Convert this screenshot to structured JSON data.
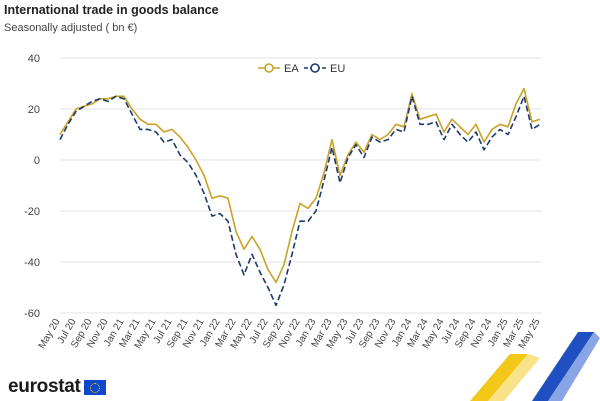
{
  "header": {
    "title": "International trade in goods balance",
    "subtitle": "Seasonally adjusted ( bn €)"
  },
  "brand": {
    "logo_text": "eurostat",
    "logo_icon": "eu-flag-icon"
  },
  "colors": {
    "ea": "#c9a227",
    "eu": "#1c3a6e",
    "grid": "#e3e3e3",
    "accent_yellow": "#f2c200",
    "accent_blue": "#1f4fc1"
  },
  "chart_data": {
    "type": "line",
    "title": "International trade in goods balance",
    "subtitle": "Seasonally adjusted ( bn €)",
    "xlabel": "",
    "ylabel": "",
    "ylim": [
      -60,
      40
    ],
    "yticks": [
      40,
      20,
      0,
      -20,
      -40,
      -60
    ],
    "grid": true,
    "legend_position": "top-center",
    "categories": [
      "May 20",
      "Jun 20",
      "Jul 20",
      "Aug 20",
      "Sep 20",
      "Oct 20",
      "Nov 20",
      "Dec 20",
      "Jan 21",
      "Feb 21",
      "Mar 21",
      "Apr 21",
      "May 21",
      "Jun 21",
      "Jul 21",
      "Aug 21",
      "Sep 21",
      "Oct 21",
      "Nov 21",
      "Dec 21",
      "Jan 22",
      "Feb 22",
      "Mar 22",
      "Apr 22",
      "May 22",
      "Jun 22",
      "Jul 22",
      "Aug 22",
      "Sep 22",
      "Oct 22",
      "Nov 22",
      "Dec 22",
      "Jan 23",
      "Feb 23",
      "Mar 23",
      "Apr 23",
      "May 23",
      "Jun 23",
      "Jul 23",
      "Aug 23",
      "Sep 23",
      "Oct 23",
      "Nov 23",
      "Dec 23",
      "Jan 24",
      "Feb 24",
      "Mar 24",
      "Apr 24",
      "May 24",
      "Jun 24",
      "Jul 24",
      "Aug 24",
      "Sep 24",
      "Oct 24",
      "Nov 24",
      "Dec 24",
      "Jan 25",
      "Feb 25",
      "Mar 25",
      "Apr 25",
      "May 25"
    ],
    "tick_labels": [
      "May 20",
      "Jul 20",
      "Sep 20",
      "Nov 20",
      "Jan 21",
      "Mar 21",
      "May 21",
      "Jul 21",
      "Sep 21",
      "Nov 21",
      "Jan 22",
      "Mar 22",
      "May 22",
      "Jul 22",
      "Sep 22",
      "Nov 22",
      "Jan 23",
      "Mar 23",
      "May 23",
      "Jul 23",
      "Sep 23",
      "Nov 23",
      "Jan 24",
      "Mar 24",
      "May 24",
      "Jul 24",
      "Sep 24",
      "Nov 24",
      "Jan 25",
      "Mar 25",
      "May 25"
    ],
    "series": [
      {
        "name": "EA",
        "style": "solid",
        "values": [
          10,
          15,
          20,
          21,
          22,
          24,
          24,
          25,
          25,
          20,
          16,
          14,
          14,
          11,
          12,
          9,
          5,
          0,
          -6,
          -15,
          -14,
          -15,
          -28,
          -35,
          -30,
          -35,
          -43,
          -48,
          -41,
          -28,
          -17,
          -19,
          -15,
          -5,
          8,
          -6,
          2,
          7,
          3,
          10,
          8,
          10,
          14,
          13,
          26,
          16,
          17,
          18,
          11,
          16,
          13,
          10,
          14,
          7,
          12,
          14,
          13,
          22,
          28,
          15,
          16
        ]
      },
      {
        "name": "EU",
        "style": "dashed",
        "values": [
          8,
          14,
          19,
          21,
          23,
          24,
          23,
          25,
          24,
          18,
          12,
          12,
          11,
          7,
          8,
          2,
          -1,
          -6,
          -13,
          -22,
          -21,
          -24,
          -37,
          -45,
          -37,
          -44,
          -50,
          -57,
          -49,
          -37,
          -24,
          -24,
          -20,
          -8,
          5,
          -9,
          1,
          6,
          1,
          9,
          7,
          8,
          12,
          11,
          25,
          14,
          14,
          15,
          8,
          14,
          10,
          7,
          11,
          4,
          9,
          12,
          10,
          17,
          25,
          12,
          14
        ]
      }
    ]
  }
}
